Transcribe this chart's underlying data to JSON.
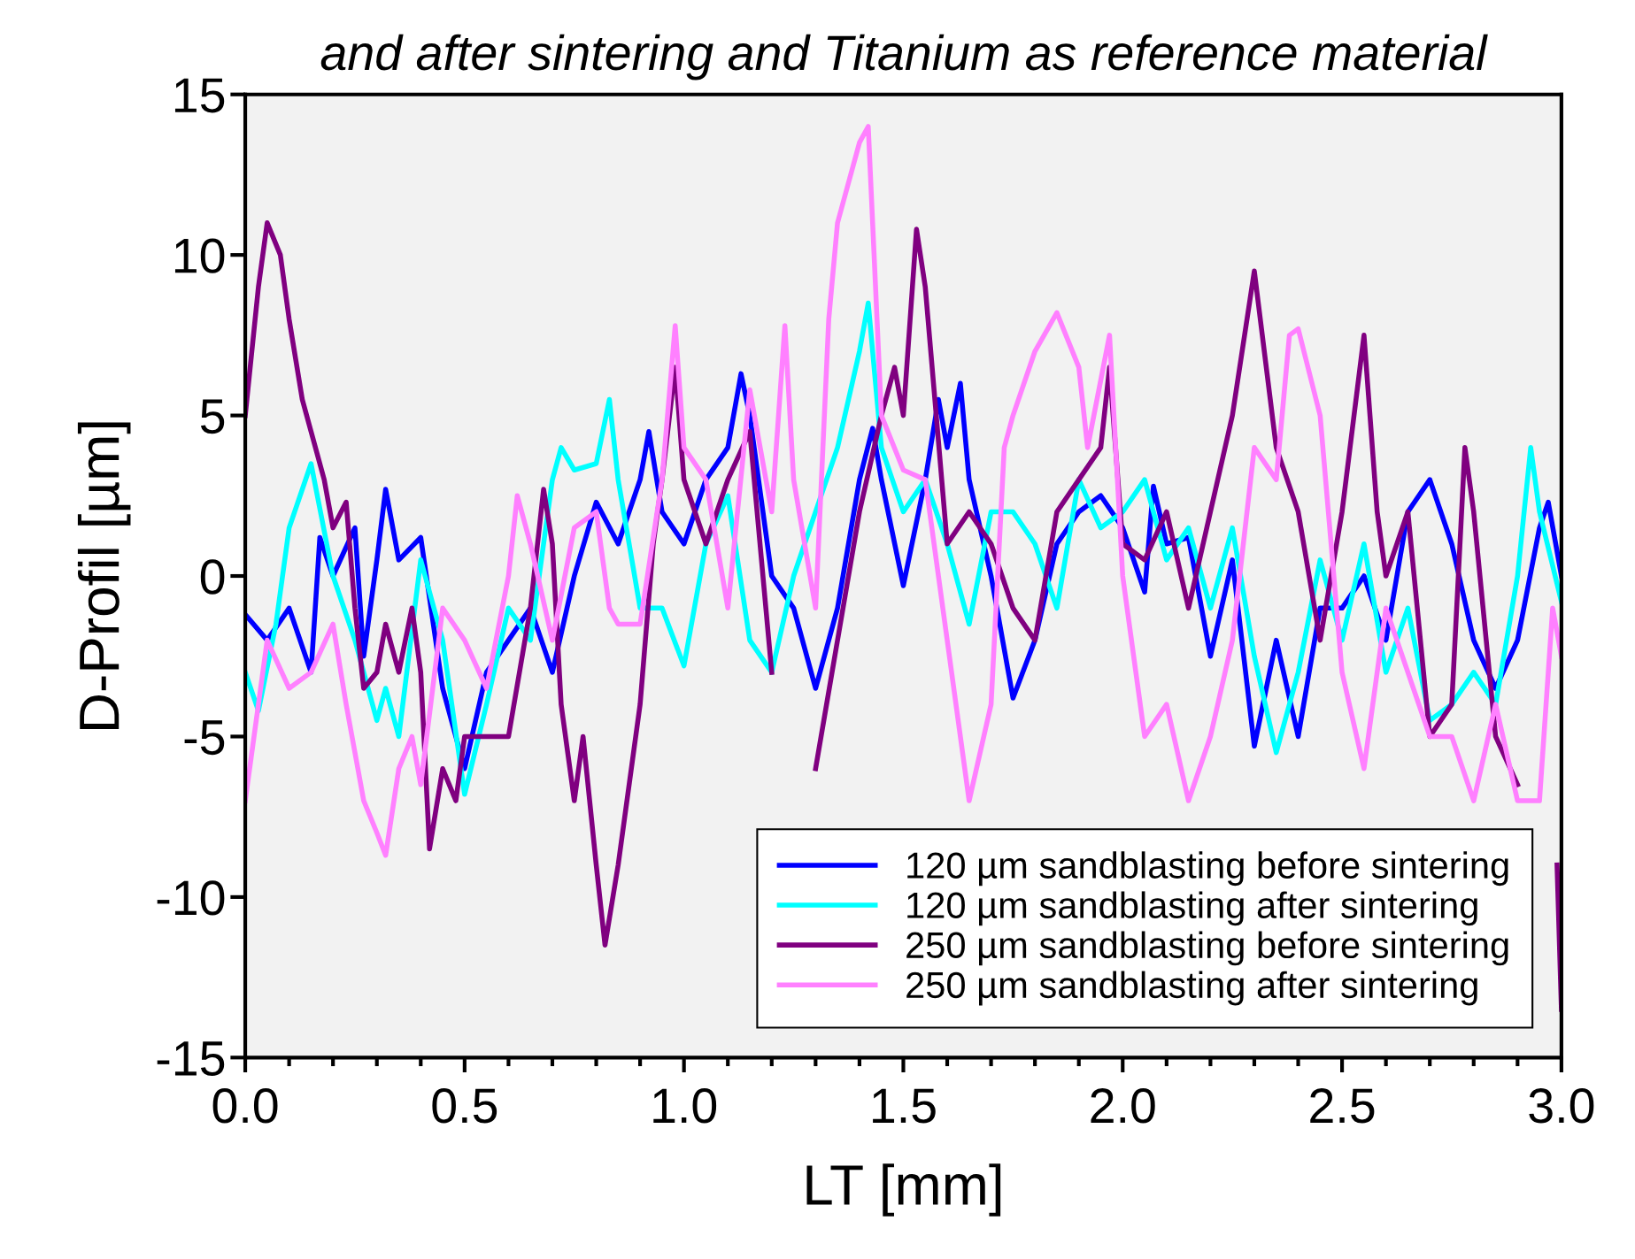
{
  "chart_data": {
    "type": "line",
    "title": "and after sintering and Titanium as reference material",
    "xlabel": "LT [mm]",
    "ylabel": "D-Profil [µm]",
    "xlim": [
      0,
      3
    ],
    "ylim": [
      -15,
      15
    ],
    "xticks": [
      {
        "value": 0,
        "label": "0.0"
      },
      {
        "value": 0.5,
        "label": "0.5"
      },
      {
        "value": 1,
        "label": "1.0"
      },
      {
        "value": 1.5,
        "label": "1.5"
      },
      {
        "value": 2,
        "label": "2.0"
      },
      {
        "value": 2.5,
        "label": "2.5"
      },
      {
        "value": 3,
        "label": "3.0"
      }
    ],
    "yticks": [
      -15,
      -10,
      -5,
      0,
      5,
      10,
      15
    ],
    "grid": false,
    "legend": "bottom right",
    "line_style": "solid",
    "marker": "none",
    "series": [
      {
        "name": "120 µm sandblasting before sintering",
        "color": "#0000ff",
        "x": [
          0.0,
          0.05,
          0.1,
          0.15,
          0.17,
          0.2,
          0.25,
          0.27,
          0.3,
          0.32,
          0.35,
          0.4,
          0.45,
          0.5,
          0.55,
          0.6,
          0.65,
          0.7,
          0.75,
          0.8,
          0.85,
          0.9,
          0.92,
          0.95,
          1.0,
          1.05,
          1.1,
          1.13,
          1.15,
          1.2,
          1.25,
          1.3,
          1.35,
          1.4,
          1.43,
          1.45,
          1.5,
          1.55,
          1.58,
          1.6,
          1.63,
          1.65,
          1.7,
          1.75,
          1.8,
          1.85,
          1.9,
          1.95,
          2.0,
          2.05,
          2.07,
          2.1,
          2.15,
          2.2,
          2.25,
          2.3,
          2.35,
          2.4,
          2.45,
          2.5,
          2.55,
          2.6,
          2.65,
          2.7,
          2.75,
          2.8,
          2.85,
          2.9,
          2.95,
          2.97,
          3.0
        ],
        "values": [
          -1.2,
          -2,
          -1,
          -3,
          1.2,
          0,
          1.5,
          -2.5,
          0.5,
          2.7,
          0.5,
          1.2,
          -3.5,
          -6,
          -3,
          -2,
          -1,
          -3,
          0,
          2.3,
          1,
          3,
          4.5,
          2,
          1,
          3,
          4,
          6.3,
          5,
          0,
          -1,
          -3.5,
          -1,
          3,
          4.6,
          3,
          -0.3,
          3,
          5.5,
          4,
          6,
          3,
          0,
          -3.8,
          -2,
          1,
          2,
          2.5,
          1.5,
          -0.5,
          2.8,
          1,
          1.2,
          -2.5,
          0.5,
          -5.3,
          -2,
          -5,
          -1,
          -1,
          0,
          -2,
          2,
          3,
          1,
          -2,
          -3.5,
          -2,
          1.5,
          2.3,
          0
        ]
      },
      {
        "name": "120 µm sandblasting after sintering",
        "color": "#00ffff",
        "x": [
          0.0,
          0.03,
          0.07,
          0.1,
          0.15,
          0.2,
          0.25,
          0.3,
          0.32,
          0.35,
          0.4,
          0.45,
          0.5,
          0.55,
          0.6,
          0.65,
          0.7,
          0.72,
          0.75,
          0.8,
          0.83,
          0.85,
          0.9,
          0.95,
          1.0,
          1.05,
          1.1,
          1.15,
          1.2,
          1.25,
          1.3,
          1.35,
          1.4,
          1.42,
          1.45,
          1.5,
          1.55,
          1.6,
          1.65,
          1.7,
          1.75,
          1.8,
          1.85,
          1.9,
          1.95,
          2.0,
          2.05,
          2.1,
          2.15,
          2.2,
          2.25,
          2.3,
          2.35,
          2.4,
          2.45,
          2.5,
          2.55,
          2.6,
          2.65,
          2.7,
          2.75,
          2.8,
          2.85,
          2.9,
          2.93,
          2.95,
          3.0
        ],
        "values": [
          -3,
          -4.2,
          -1.5,
          1.5,
          3.5,
          0,
          -2,
          -4.5,
          -3.5,
          -5,
          0.5,
          -2,
          -6.8,
          -4,
          -1,
          -2,
          3,
          4,
          3.3,
          3.5,
          5.5,
          3,
          -1,
          -1,
          -2.8,
          1,
          2.5,
          -2,
          -3,
          0,
          2,
          4,
          7,
          8.5,
          4,
          2,
          3,
          1,
          -1.5,
          2,
          2,
          1,
          -1,
          3,
          1.5,
          2,
          3,
          0.5,
          1.5,
          -1,
          1.5,
          -2.5,
          -5.5,
          -3,
          0.5,
          -2,
          1,
          -3,
          -1,
          -4.5,
          -4,
          -3,
          -4,
          0,
          4,
          2,
          -0.8
        ]
      },
      {
        "name": "250 µm sandblasting before sintering",
        "color": "#800080",
        "x": [
          0.0,
          0.03,
          0.05,
          0.08,
          0.1,
          0.13,
          0.15,
          0.18,
          0.2,
          0.23,
          0.25,
          0.27,
          0.3,
          0.32,
          0.35,
          0.38,
          0.4,
          0.42,
          0.45,
          0.48,
          0.5,
          0.55,
          0.6,
          0.65,
          0.68,
          0.7,
          0.72,
          0.75,
          0.77,
          0.8,
          0.82,
          0.85,
          0.9,
          0.93,
          0.95,
          0.98,
          1.0,
          1.05,
          1.1,
          1.15,
          1.2,
          1.25,
          1.3,
          1.35,
          1.4,
          1.45,
          1.48,
          1.5,
          1.53,
          1.55,
          1.6,
          1.65,
          1.7,
          1.75,
          1.8,
          1.85,
          1.9,
          1.95,
          1.97,
          2.0,
          2.05,
          2.1,
          2.15,
          2.2,
          2.25,
          2.3,
          2.35,
          2.4,
          2.45,
          2.5,
          2.55,
          2.58,
          2.6,
          2.65,
          2.7,
          2.75,
          2.78,
          2.8,
          2.85,
          2.9,
          2.95,
          2.99,
          3.0
        ],
        "values": [
          5,
          9,
          11,
          10,
          8,
          5.5,
          4.5,
          3,
          1.5,
          2.3,
          -1,
          -3.5,
          -3,
          -1.5,
          -3,
          -1,
          -3,
          -8.5,
          -6,
          -7,
          -5,
          -5,
          -5,
          -1,
          2.7,
          1,
          -4,
          -7,
          -5,
          -9,
          -11.5,
          -9,
          -4,
          1,
          3,
          6.5,
          3,
          1,
          3,
          4.5,
          -3,
          null,
          -6,
          -2,
          2,
          5,
          6.5,
          5,
          10.8,
          9,
          1,
          2,
          1,
          -1,
          -2,
          2,
          3,
          4,
          6.5,
          1,
          0.5,
          2,
          -1,
          2,
          5,
          9.5,
          4,
          2,
          -2,
          2,
          7.5,
          2,
          0,
          2,
          -5,
          -4,
          4,
          2,
          -5,
          -6.5,
          null,
          -9,
          -13.5
        ]
      },
      {
        "name": "250 µm sandblasting after sintering",
        "color": "#ff80ff",
        "x": [
          0.0,
          0.03,
          0.05,
          0.1,
          0.15,
          0.2,
          0.23,
          0.27,
          0.3,
          0.32,
          0.35,
          0.38,
          0.4,
          0.45,
          0.5,
          0.55,
          0.6,
          0.62,
          0.65,
          0.7,
          0.75,
          0.8,
          0.83,
          0.85,
          0.9,
          0.95,
          0.98,
          1.0,
          1.05,
          1.1,
          1.15,
          1.2,
          1.23,
          1.25,
          1.3,
          1.33,
          1.35,
          1.4,
          1.42,
          1.45,
          1.5,
          1.55,
          1.6,
          1.65,
          1.7,
          1.73,
          1.75,
          1.8,
          1.85,
          1.9,
          1.92,
          1.97,
          2.0,
          2.05,
          2.1,
          2.15,
          2.2,
          2.25,
          2.3,
          2.35,
          2.38,
          2.4,
          2.45,
          2.5,
          2.55,
          2.6,
          2.65,
          2.7,
          2.75,
          2.8,
          2.85,
          2.9,
          2.95,
          2.98,
          3.0
        ],
        "values": [
          -7,
          -4,
          -2,
          -3.5,
          -3,
          -1.5,
          -4,
          -7,
          -8,
          -8.7,
          -6,
          -5,
          -6.5,
          -1,
          -2,
          -3.5,
          0,
          2.5,
          1,
          -2,
          1.5,
          2,
          -1,
          -1.5,
          -1.5,
          3,
          7.8,
          4,
          3,
          -1,
          5.8,
          2,
          7.8,
          3,
          -1,
          8,
          11,
          13.5,
          14,
          5,
          3.3,
          3,
          -2,
          -7,
          -4,
          4,
          5,
          7,
          8.2,
          6.5,
          4,
          7.5,
          0,
          -5,
          -4,
          -7,
          -5,
          -2,
          4,
          3,
          7.5,
          7.7,
          5,
          -3,
          -6,
          -1,
          -3,
          -5,
          -5,
          -7,
          -4,
          -7,
          -7,
          -1,
          -2.5
        ]
      }
    ]
  }
}
